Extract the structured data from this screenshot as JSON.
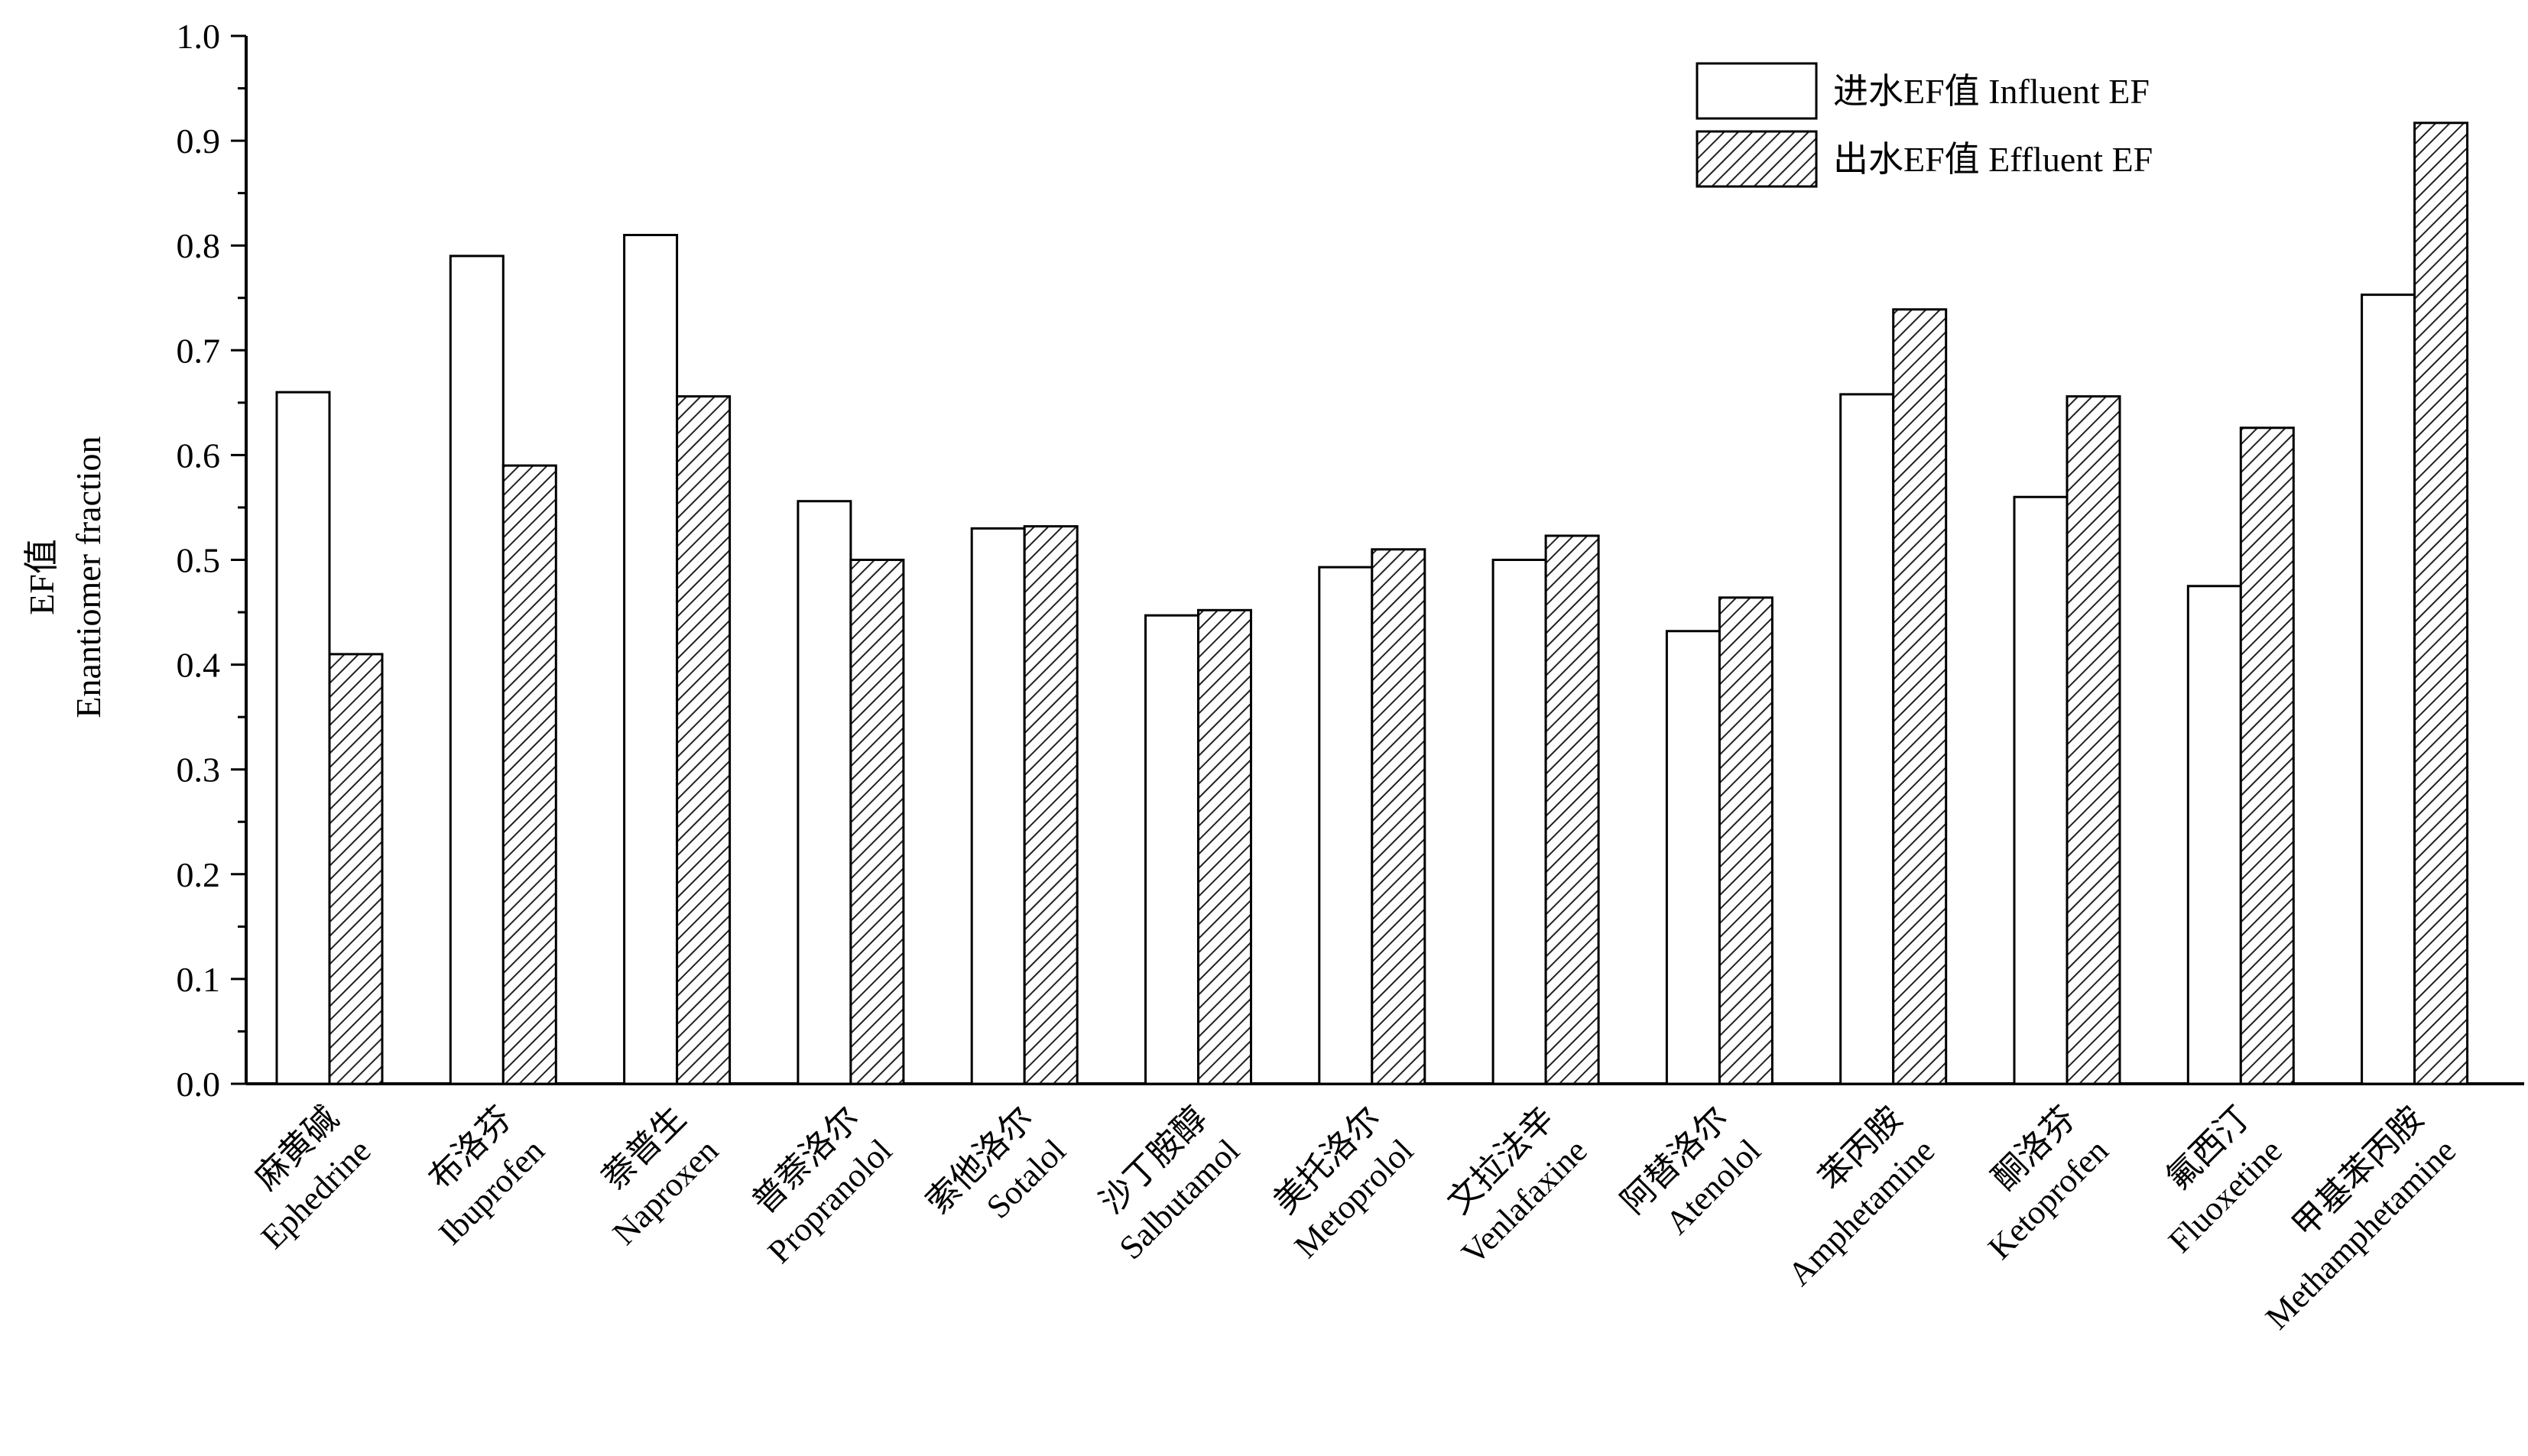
{
  "chart_data": {
    "type": "bar",
    "ylabel_lines": [
      "EF值",
      "Enantiomer fraction"
    ],
    "ylim": [
      0,
      1.0
    ],
    "yticks": [
      "0.0",
      "0.1",
      "0.2",
      "0.3",
      "0.4",
      "0.5",
      "0.6",
      "0.7",
      "0.8",
      "0.9",
      "1.0"
    ],
    "categories": [
      {
        "cn": "麻黄碱",
        "en": "Ephedrine"
      },
      {
        "cn": "布洛芬",
        "en": "Ibuprofen"
      },
      {
        "cn": "萘普生",
        "en": "Naproxen"
      },
      {
        "cn": "普萘洛尔",
        "en": "Propranolol"
      },
      {
        "cn": "索他洛尔",
        "en": "Sotalol"
      },
      {
        "cn": "沙丁胺醇",
        "en": "Salbutamol"
      },
      {
        "cn": "美托洛尔",
        "en": "Metoprolol"
      },
      {
        "cn": "文拉法辛",
        "en": "Venlafaxine"
      },
      {
        "cn": "阿替洛尔",
        "en": "Atenolol"
      },
      {
        "cn": "苯丙胺",
        "en": "Amphetamine"
      },
      {
        "cn": "酮洛芬",
        "en": "Ketoprofen"
      },
      {
        "cn": "氟西汀",
        "en": "Fluoxetine"
      },
      {
        "cn": "甲基苯丙胺",
        "en": "Methamphetamine"
      }
    ],
    "series": [
      {
        "name": "进水EF值 Influent EF",
        "pattern": "open",
        "values": [
          0.66,
          0.79,
          0.81,
          0.556,
          0.53,
          0.447,
          0.493,
          0.5,
          0.432,
          0.658,
          0.56,
          0.475,
          0.753
        ]
      },
      {
        "name": "出水EF值 Effluent EF",
        "pattern": "hatched",
        "values": [
          0.41,
          0.59,
          0.656,
          0.5,
          0.532,
          0.452,
          0.51,
          0.523,
          0.464,
          0.739,
          0.656,
          0.626,
          0.917
        ]
      }
    ],
    "legend_position": "top-right",
    "grid": false
  }
}
